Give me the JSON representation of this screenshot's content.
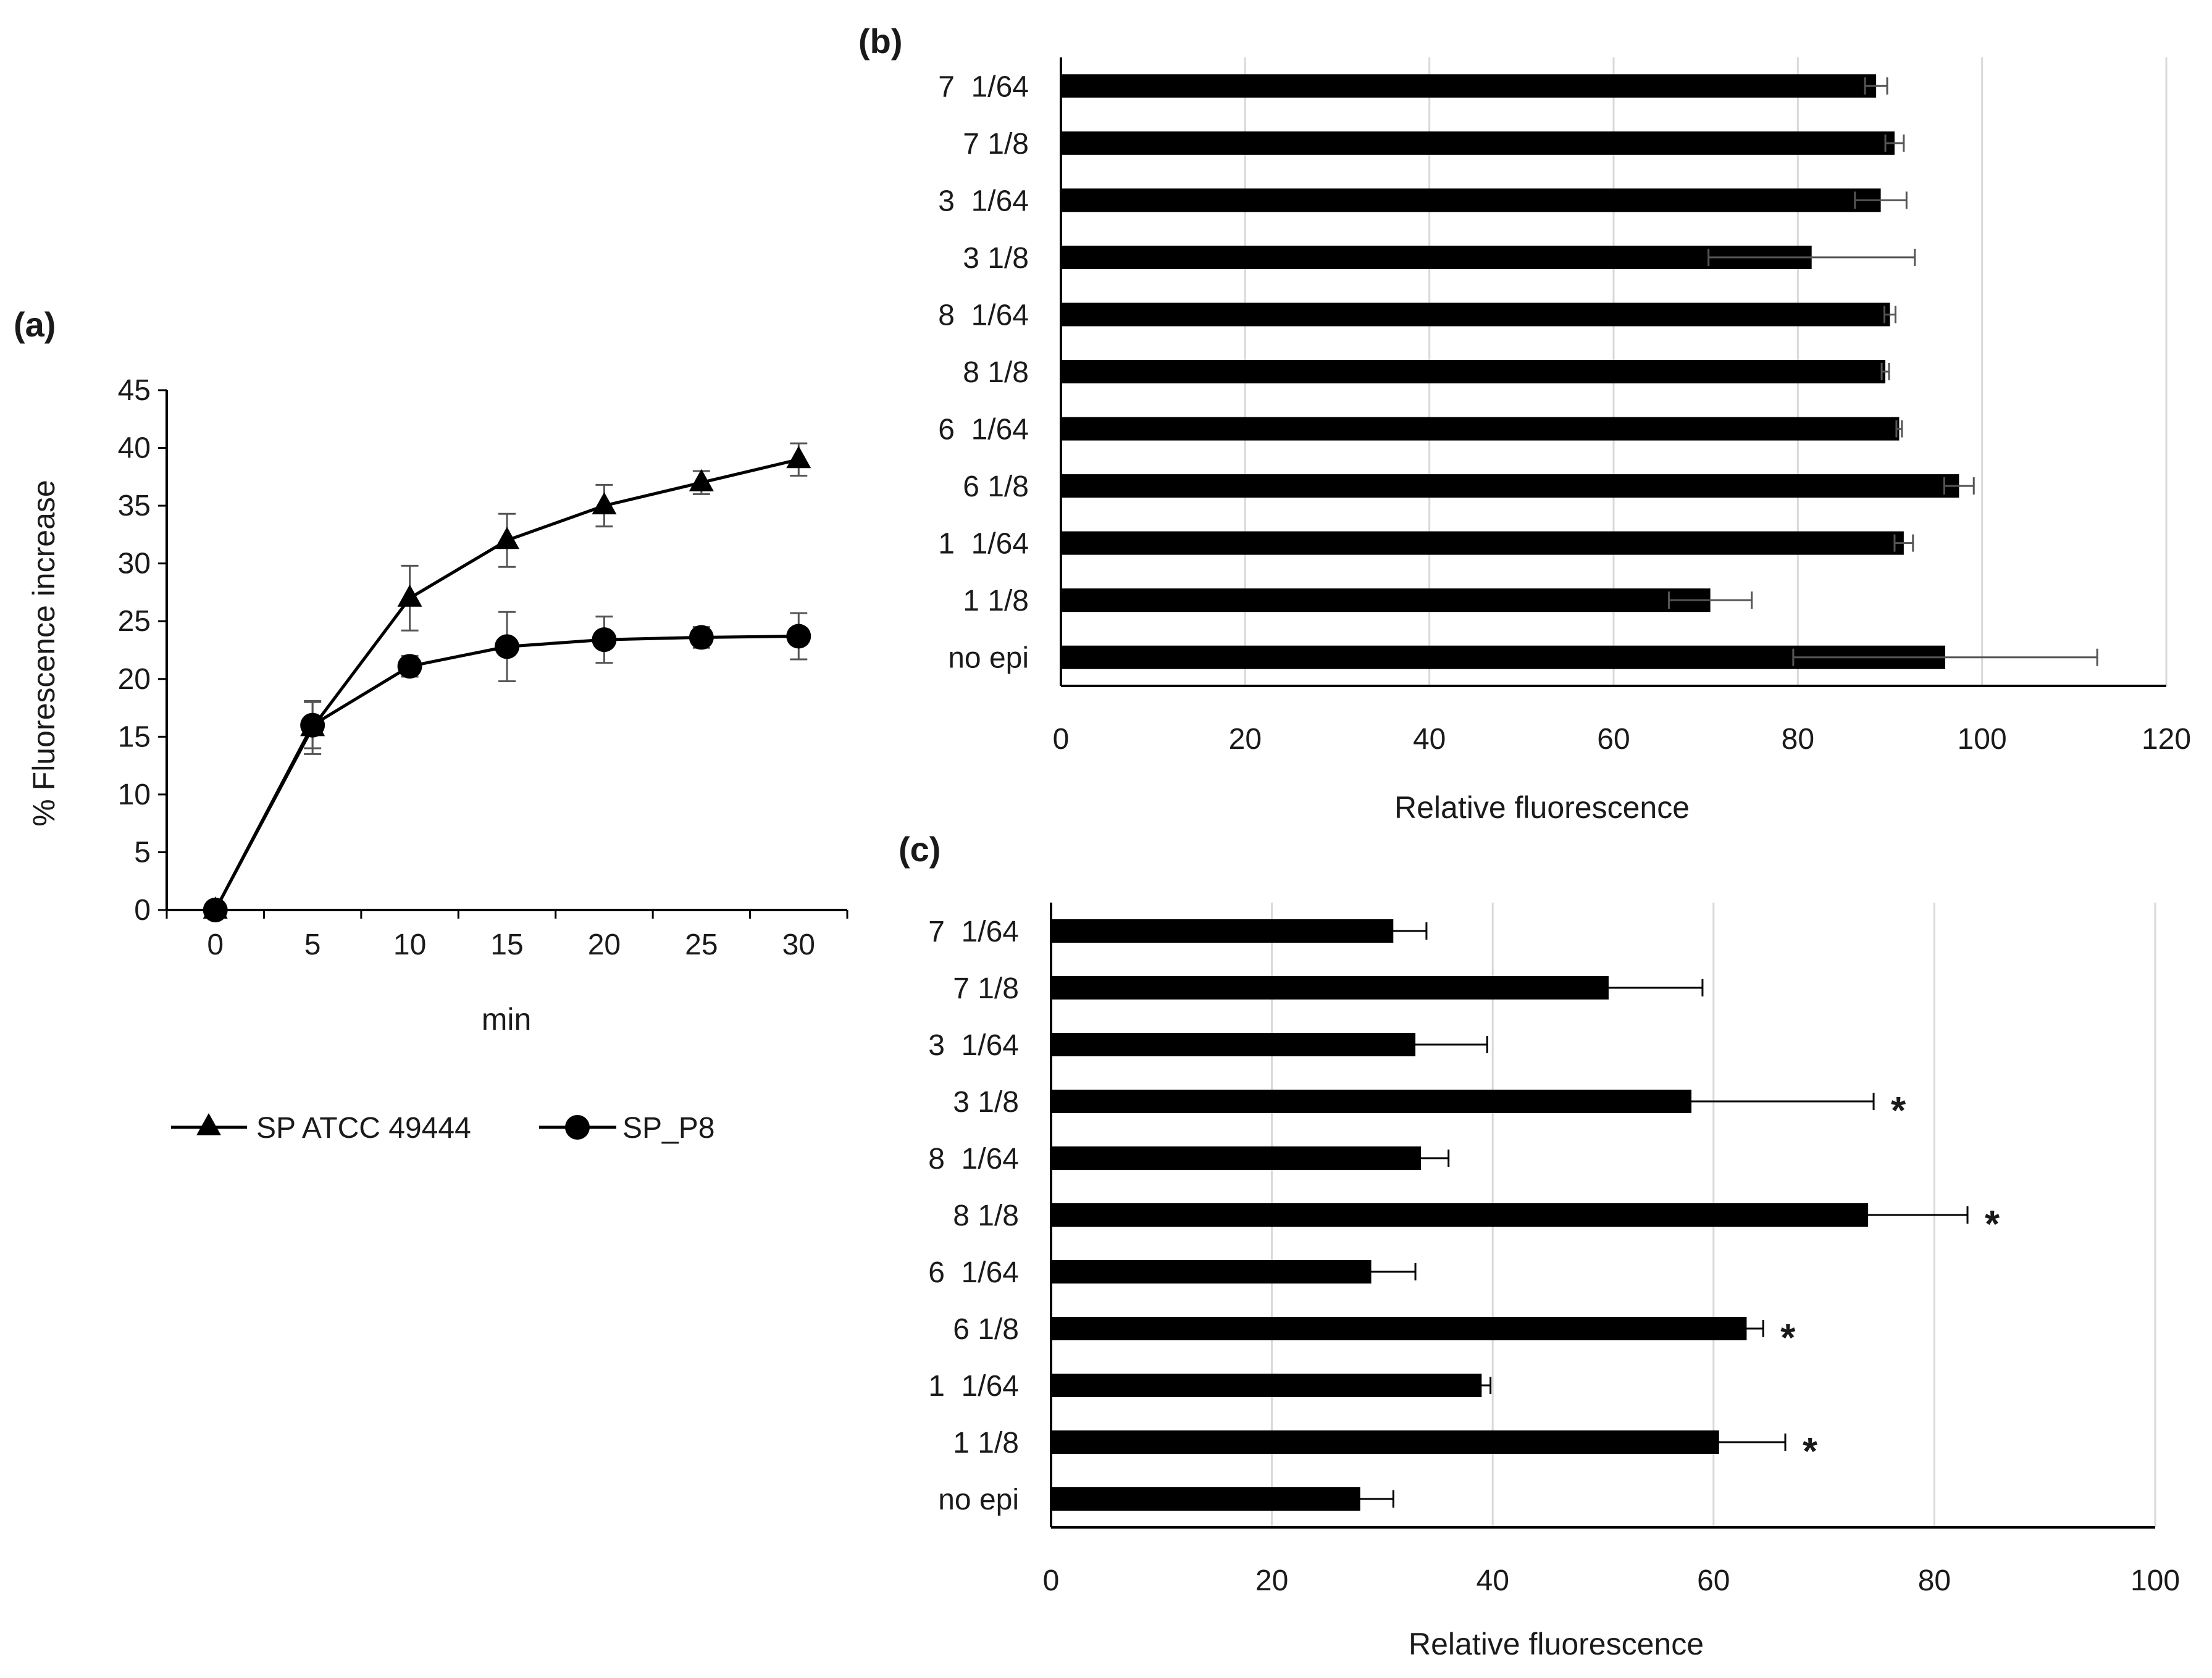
{
  "chart_data": [
    {
      "panel": "(a)",
      "type": "line",
      "xlabel": "min",
      "ylabel": "% Fluorescence increase",
      "x": [
        0,
        5,
        10,
        15,
        20,
        25,
        30
      ],
      "xlim": [
        0,
        30
      ],
      "ylim": [
        0,
        45
      ],
      "yticks": [
        0,
        5,
        10,
        15,
        20,
        25,
        30,
        35,
        40,
        45
      ],
      "legend_position": "bottom",
      "series": [
        {
          "name": "SP ATCC 49444",
          "marker": "triangle",
          "values": [
            0,
            15.8,
            27,
            32,
            35,
            37,
            39
          ],
          "errors": [
            0,
            2.3,
            2.8,
            2.3,
            1.8,
            1.0,
            1.4
          ]
        },
        {
          "name": "SP_P8",
          "marker": "circle",
          "values": [
            0,
            16,
            21.1,
            22.8,
            23.4,
            23.6,
            23.7
          ],
          "errors": [
            0,
            2.0,
            0.9,
            3.0,
            2.0,
            0.9,
            2.0
          ]
        }
      ]
    },
    {
      "panel": "(b)",
      "type": "bar",
      "orientation": "horizontal",
      "xlabel": "Relative fluorescence",
      "xlim": [
        0,
        120
      ],
      "xticks": [
        0,
        20,
        40,
        60,
        80,
        100,
        120
      ],
      "grid": true,
      "categories": [
        "7  1/64",
        "7 1/8",
        "3  1/64",
        "3 1/8",
        "8  1/64",
        "8 1/8",
        "6  1/64",
        "6 1/8",
        "1  1/64",
        "1 1/8",
        "no epi"
      ],
      "values": [
        88.5,
        90.5,
        89,
        81.5,
        90,
        89.5,
        91,
        97.5,
        91.5,
        70.5,
        96
      ],
      "errors": [
        1.2,
        1.0,
        2.8,
        11.2,
        0.6,
        0.4,
        0.3,
        1.6,
        1.0,
        4.5,
        16.5
      ]
    },
    {
      "panel": "(c)",
      "type": "bar",
      "orientation": "horizontal",
      "xlabel": "Relative fluorescence",
      "xlim": [
        0,
        100
      ],
      "xticks": [
        0,
        20,
        40,
        60,
        80,
        100
      ],
      "grid": true,
      "categories": [
        "7  1/64",
        "7 1/8",
        "3  1/64",
        "3 1/8",
        "8  1/64",
        "8 1/8",
        "6  1/64",
        "6 1/8",
        "1  1/64",
        "1 1/8",
        "no epi"
      ],
      "values": [
        31,
        50.5,
        33,
        58,
        33.5,
        74,
        29,
        63,
        39,
        60.5,
        28
      ],
      "errors": [
        3,
        8.5,
        6.5,
        16.5,
        2.5,
        9,
        4,
        1.5,
        0.8,
        6,
        3
      ],
      "annotations": [
        "",
        "",
        "",
        "*",
        "",
        "*",
        "",
        "*",
        "",
        "*",
        ""
      ]
    }
  ]
}
